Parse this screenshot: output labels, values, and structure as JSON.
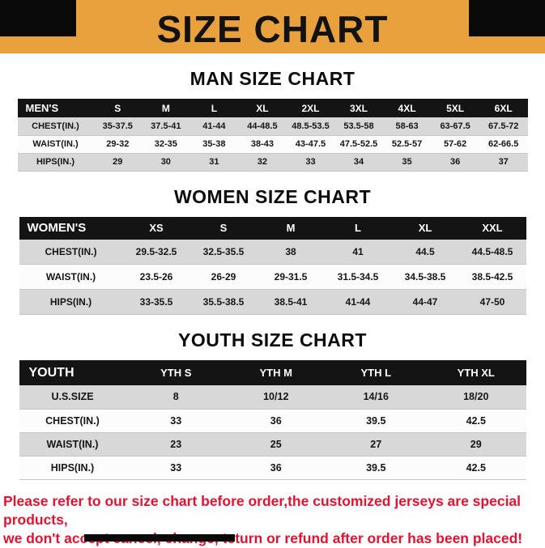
{
  "banner": {
    "title": "SIZE CHART"
  },
  "men": {
    "heading": "MAN SIZE CHART",
    "headers": [
      "MEN'S",
      "S",
      "M",
      "L",
      "XL",
      "2XL",
      "3XL",
      "4XL",
      "5XL",
      "6XL"
    ],
    "rows": [
      {
        "label": "CHEST(IN.)",
        "values": [
          "35-37.5",
          "37.5-41",
          "41-44",
          "44-48.5",
          "48.5-53.5",
          "53.5-58",
          "58-63",
          "63-67.5",
          "67.5-72"
        ]
      },
      {
        "label": "WAIST(IN.)",
        "values": [
          "29-32",
          "32-35",
          "35-38",
          "38-43",
          "43-47.5",
          "47.5-52.5",
          "52.5-57",
          "57-62",
          "62-66.5"
        ]
      },
      {
        "label": "HIPS(IN.)",
        "values": [
          "29",
          "30",
          "31",
          "32",
          "33",
          "34",
          "35",
          "36",
          "37"
        ]
      }
    ]
  },
  "women": {
    "heading": "WOMEN SIZE CHART",
    "headers": [
      "WOMEN'S",
      "XS",
      "S",
      "M",
      "L",
      "XL",
      "XXL"
    ],
    "rows": [
      {
        "label": "CHEST(IN.)",
        "values": [
          "29.5-32.5",
          "32.5-35.5",
          "38",
          "41",
          "44.5",
          "44.5-48.5"
        ]
      },
      {
        "label": "WAIST(IN.)",
        "values": [
          "23.5-26",
          "26-29",
          "29-31.5",
          "31.5-34.5",
          "34.5-38.5",
          "38.5-42.5"
        ]
      },
      {
        "label": "HIPS(IN.)",
        "values": [
          "33-35.5",
          "35.5-38.5",
          "38.5-41",
          "41-44",
          "44-47",
          "47-50"
        ]
      }
    ]
  },
  "youth": {
    "heading": "YOUTH SIZE CHART",
    "headers": [
      "YOUTH",
      "YTH S",
      "YTH M",
      "YTH L",
      "YTH XL"
    ],
    "rows": [
      {
        "label": "U.S.SIZE",
        "values": [
          "8",
          "10/12",
          "14/16",
          "18/20"
        ]
      },
      {
        "label": "CHEST(IN.)",
        "values": [
          "33",
          "36",
          "39.5",
          "42.5"
        ]
      },
      {
        "label": "WAIST(IN.)",
        "values": [
          "23",
          "25",
          "27",
          "29"
        ]
      },
      {
        "label": "HIPS(IN.)",
        "values": [
          "33",
          "36",
          "39.5",
          "42.5"
        ]
      }
    ]
  },
  "footer": {
    "line1": "Please refer to our size chart before order,the customized jerseys are special products,",
    "line2": "we don't accept cancel, change, teturn or refund after order has been placed!"
  },
  "colors": {
    "banner_bg": "#E8A13C",
    "header_row_bg": "#141414",
    "alt_row_bg": "#D8D8D8",
    "footer_text": "#E31230"
  }
}
